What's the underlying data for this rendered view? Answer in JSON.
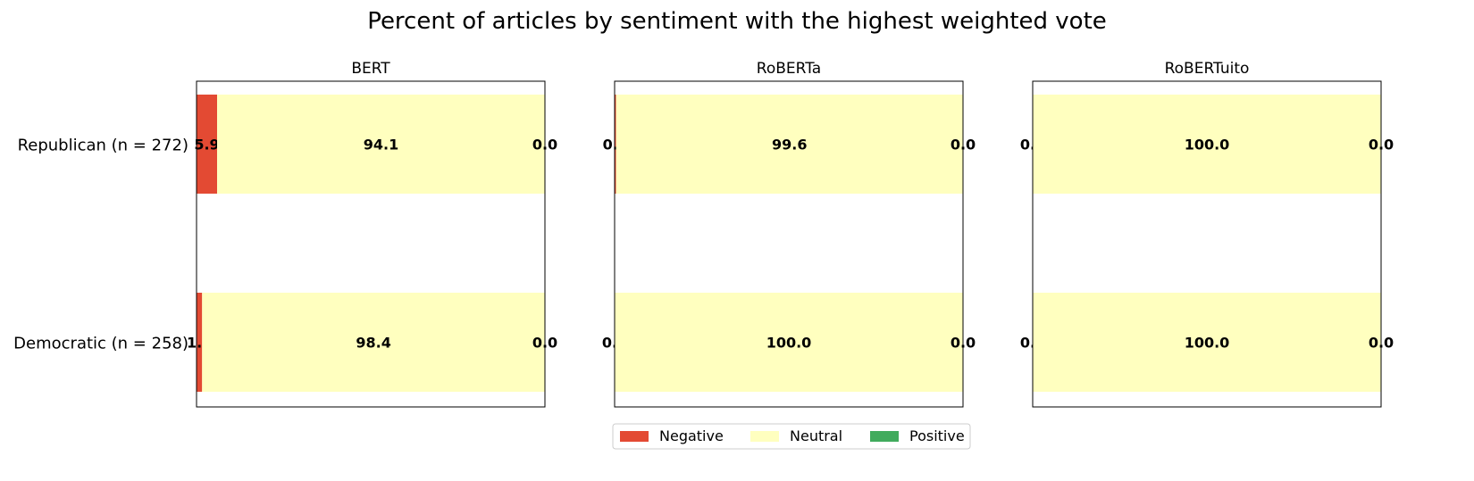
{
  "chart_data": {
    "type": "bar",
    "orientation": "horizontal",
    "stacked": true,
    "title": "Percent of articles by sentiment with the highest weighted vote",
    "categories": [
      "Republican (n = 272)",
      "Democratic (n = 258)"
    ],
    "xlim": [
      0,
      100
    ],
    "grid": false,
    "legend_position": "bottom-center",
    "legend": [
      "Negative",
      "Neutral",
      "Positive"
    ],
    "colors": {
      "Negative": "#e34a33",
      "Neutral": "#ffffbf",
      "Positive": "#41ab5d"
    },
    "panels": [
      {
        "title": "BERT",
        "series": [
          {
            "name": "Negative",
            "values": [
              5.9,
              1.6
            ],
            "labels": [
              "5.9",
              "1.6"
            ]
          },
          {
            "name": "Neutral",
            "values": [
              94.1,
              98.4
            ],
            "labels": [
              "94.1",
              "98.4"
            ]
          },
          {
            "name": "Positive",
            "values": [
              0.0,
              0.0
            ],
            "labels": [
              "0.0",
              "0.0"
            ]
          }
        ]
      },
      {
        "title": "RoBERTa",
        "series": [
          {
            "name": "Negative",
            "values": [
              0.4,
              0.0
            ],
            "labels": [
              "0.4",
              "0.0"
            ]
          },
          {
            "name": "Neutral",
            "values": [
              99.6,
              100.0
            ],
            "labels": [
              "99.6",
              "100.0"
            ]
          },
          {
            "name": "Positive",
            "values": [
              0.0,
              0.0
            ],
            "labels": [
              "0.0",
              "0.0"
            ]
          }
        ]
      },
      {
        "title": "RoBERTuito",
        "series": [
          {
            "name": "Negative",
            "values": [
              0.0,
              0.0
            ],
            "labels": [
              "0.0",
              "0.0"
            ]
          },
          {
            "name": "Neutral",
            "values": [
              100.0,
              100.0
            ],
            "labels": [
              "100.0",
              "100.0"
            ]
          },
          {
            "name": "Positive",
            "values": [
              0.0,
              0.0
            ],
            "labels": [
              "0.0",
              "0.0"
            ]
          }
        ]
      }
    ]
  }
}
